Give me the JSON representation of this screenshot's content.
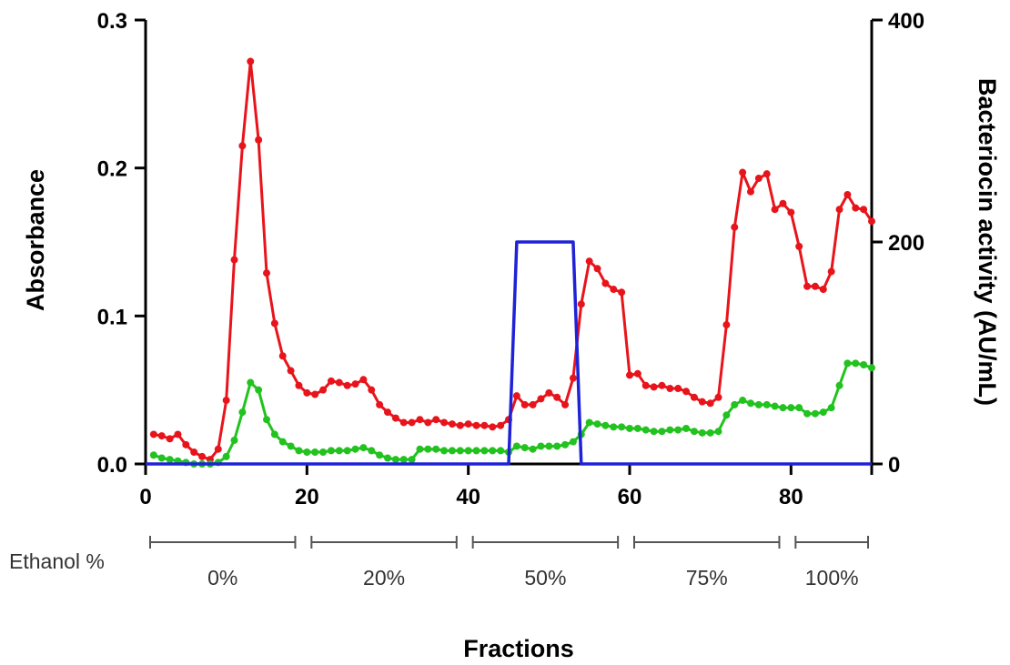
{
  "chart_data": {
    "type": "line",
    "xlabel": "Fractions",
    "ylabel": "Absorbance",
    "y2label": "Bacteriocin activity  (AU/mL)",
    "xlim": [
      0,
      90
    ],
    "ylim": [
      0,
      0.3
    ],
    "y2lim": [
      0,
      400
    ],
    "x_ticks": [
      "0",
      "20",
      "40",
      "60",
      "80"
    ],
    "y_ticks": [
      "0.0",
      "0.1",
      "0.2",
      "0.3"
    ],
    "y2_ticks": [
      "0",
      "200",
      "400"
    ],
    "grid": false,
    "colors": {
      "red_series": "#e8141b",
      "green_series": "#22c21f",
      "blue_series": "#1f22d6"
    },
    "series": [
      {
        "axis": "left",
        "color": "#e8141b",
        "x": [
          1,
          2,
          3,
          4,
          5,
          6,
          7,
          8,
          9,
          10,
          11,
          12,
          13,
          14,
          15,
          16,
          17,
          18,
          19,
          20,
          21,
          22,
          23,
          24,
          25,
          26,
          27,
          28,
          29,
          30,
          31,
          32,
          33,
          34,
          35,
          36,
          37,
          38,
          39,
          40,
          41,
          42,
          43,
          44,
          45,
          46,
          47,
          48,
          49,
          50,
          51,
          52,
          53,
          54,
          55,
          56,
          57,
          58,
          59,
          60,
          61,
          62,
          63,
          64,
          65,
          66,
          67,
          68,
          69,
          70,
          71,
          72,
          73,
          74,
          75,
          76,
          77,
          78,
          79,
          80,
          81,
          82,
          83,
          84,
          85,
          86,
          87,
          88,
          89,
          90
        ],
        "values": [
          0.02,
          0.019,
          0.017,
          0.02,
          0.013,
          0.008,
          0.005,
          0.003,
          0.01,
          0.043,
          0.138,
          0.215,
          0.272,
          0.219,
          0.129,
          0.095,
          0.073,
          0.063,
          0.053,
          0.048,
          0.047,
          0.05,
          0.056,
          0.055,
          0.053,
          0.054,
          0.057,
          0.05,
          0.04,
          0.035,
          0.031,
          0.028,
          0.028,
          0.03,
          0.028,
          0.03,
          0.028,
          0.027,
          0.026,
          0.027,
          0.026,
          0.026,
          0.025,
          0.026,
          0.03,
          0.046,
          0.04,
          0.04,
          0.044,
          0.048,
          0.045,
          0.04,
          0.058,
          0.108,
          0.137,
          0.132,
          0.122,
          0.118,
          0.116,
          0.06,
          0.061,
          0.053,
          0.052,
          0.053,
          0.051,
          0.051,
          0.049,
          0.045,
          0.042,
          0.041,
          0.045,
          0.094,
          0.16,
          0.197,
          0.184,
          0.193,
          0.196,
          0.172,
          0.176,
          0.17,
          0.147,
          0.12,
          0.12,
          0.118,
          0.13,
          0.172,
          0.182,
          0.173,
          0.172,
          0.164
        ]
      },
      {
        "axis": "left",
        "color": "#22c21f",
        "x": [
          1,
          2,
          3,
          4,
          5,
          6,
          7,
          8,
          9,
          10,
          11,
          12,
          13,
          14,
          15,
          16,
          17,
          18,
          19,
          20,
          21,
          22,
          23,
          24,
          25,
          26,
          27,
          28,
          29,
          30,
          31,
          32,
          33,
          34,
          35,
          36,
          37,
          38,
          39,
          40,
          41,
          42,
          43,
          44,
          45,
          46,
          47,
          48,
          49,
          50,
          51,
          52,
          53,
          54,
          55,
          56,
          57,
          58,
          59,
          60,
          61,
          62,
          63,
          64,
          65,
          66,
          67,
          68,
          69,
          70,
          71,
          72,
          73,
          74,
          75,
          76,
          77,
          78,
          79,
          80,
          81,
          82,
          83,
          84,
          85,
          86,
          87,
          88,
          89,
          90
        ],
        "values": [
          0.006,
          0.004,
          0.003,
          0.002,
          0.001,
          0.0,
          0.0,
          0.0,
          0.001,
          0.005,
          0.016,
          0.035,
          0.055,
          0.05,
          0.03,
          0.02,
          0.015,
          0.012,
          0.009,
          0.008,
          0.008,
          0.008,
          0.009,
          0.009,
          0.009,
          0.01,
          0.011,
          0.009,
          0.006,
          0.004,
          0.003,
          0.003,
          0.003,
          0.01,
          0.01,
          0.01,
          0.009,
          0.009,
          0.009,
          0.009,
          0.009,
          0.009,
          0.009,
          0.009,
          0.008,
          0.012,
          0.011,
          0.01,
          0.012,
          0.012,
          0.012,
          0.013,
          0.015,
          0.02,
          0.028,
          0.027,
          0.026,
          0.025,
          0.025,
          0.024,
          0.024,
          0.023,
          0.022,
          0.022,
          0.023,
          0.023,
          0.024,
          0.022,
          0.021,
          0.021,
          0.022,
          0.033,
          0.04,
          0.043,
          0.041,
          0.04,
          0.04,
          0.039,
          0.038,
          0.038,
          0.038,
          0.034,
          0.034,
          0.035,
          0.038,
          0.053,
          0.068,
          0.068,
          0.067,
          0.065
        ]
      },
      {
        "axis": "right",
        "color": "#1f22d6",
        "x": [
          0,
          45,
          46,
          53,
          54,
          90
        ],
        "values": [
          0,
          0,
          200,
          200,
          0,
          0
        ]
      }
    ]
  },
  "ethanol": {
    "label": "Ethanol %",
    "segments": [
      {
        "label": "0%",
        "from": 0,
        "to": 19
      },
      {
        "label": "20%",
        "from": 20,
        "to": 39
      },
      {
        "label": "50%",
        "from": 40,
        "to": 59
      },
      {
        "label": "75%",
        "from": 60,
        "to": 79
      },
      {
        "label": "100%",
        "from": 80,
        "to": 90
      }
    ]
  }
}
